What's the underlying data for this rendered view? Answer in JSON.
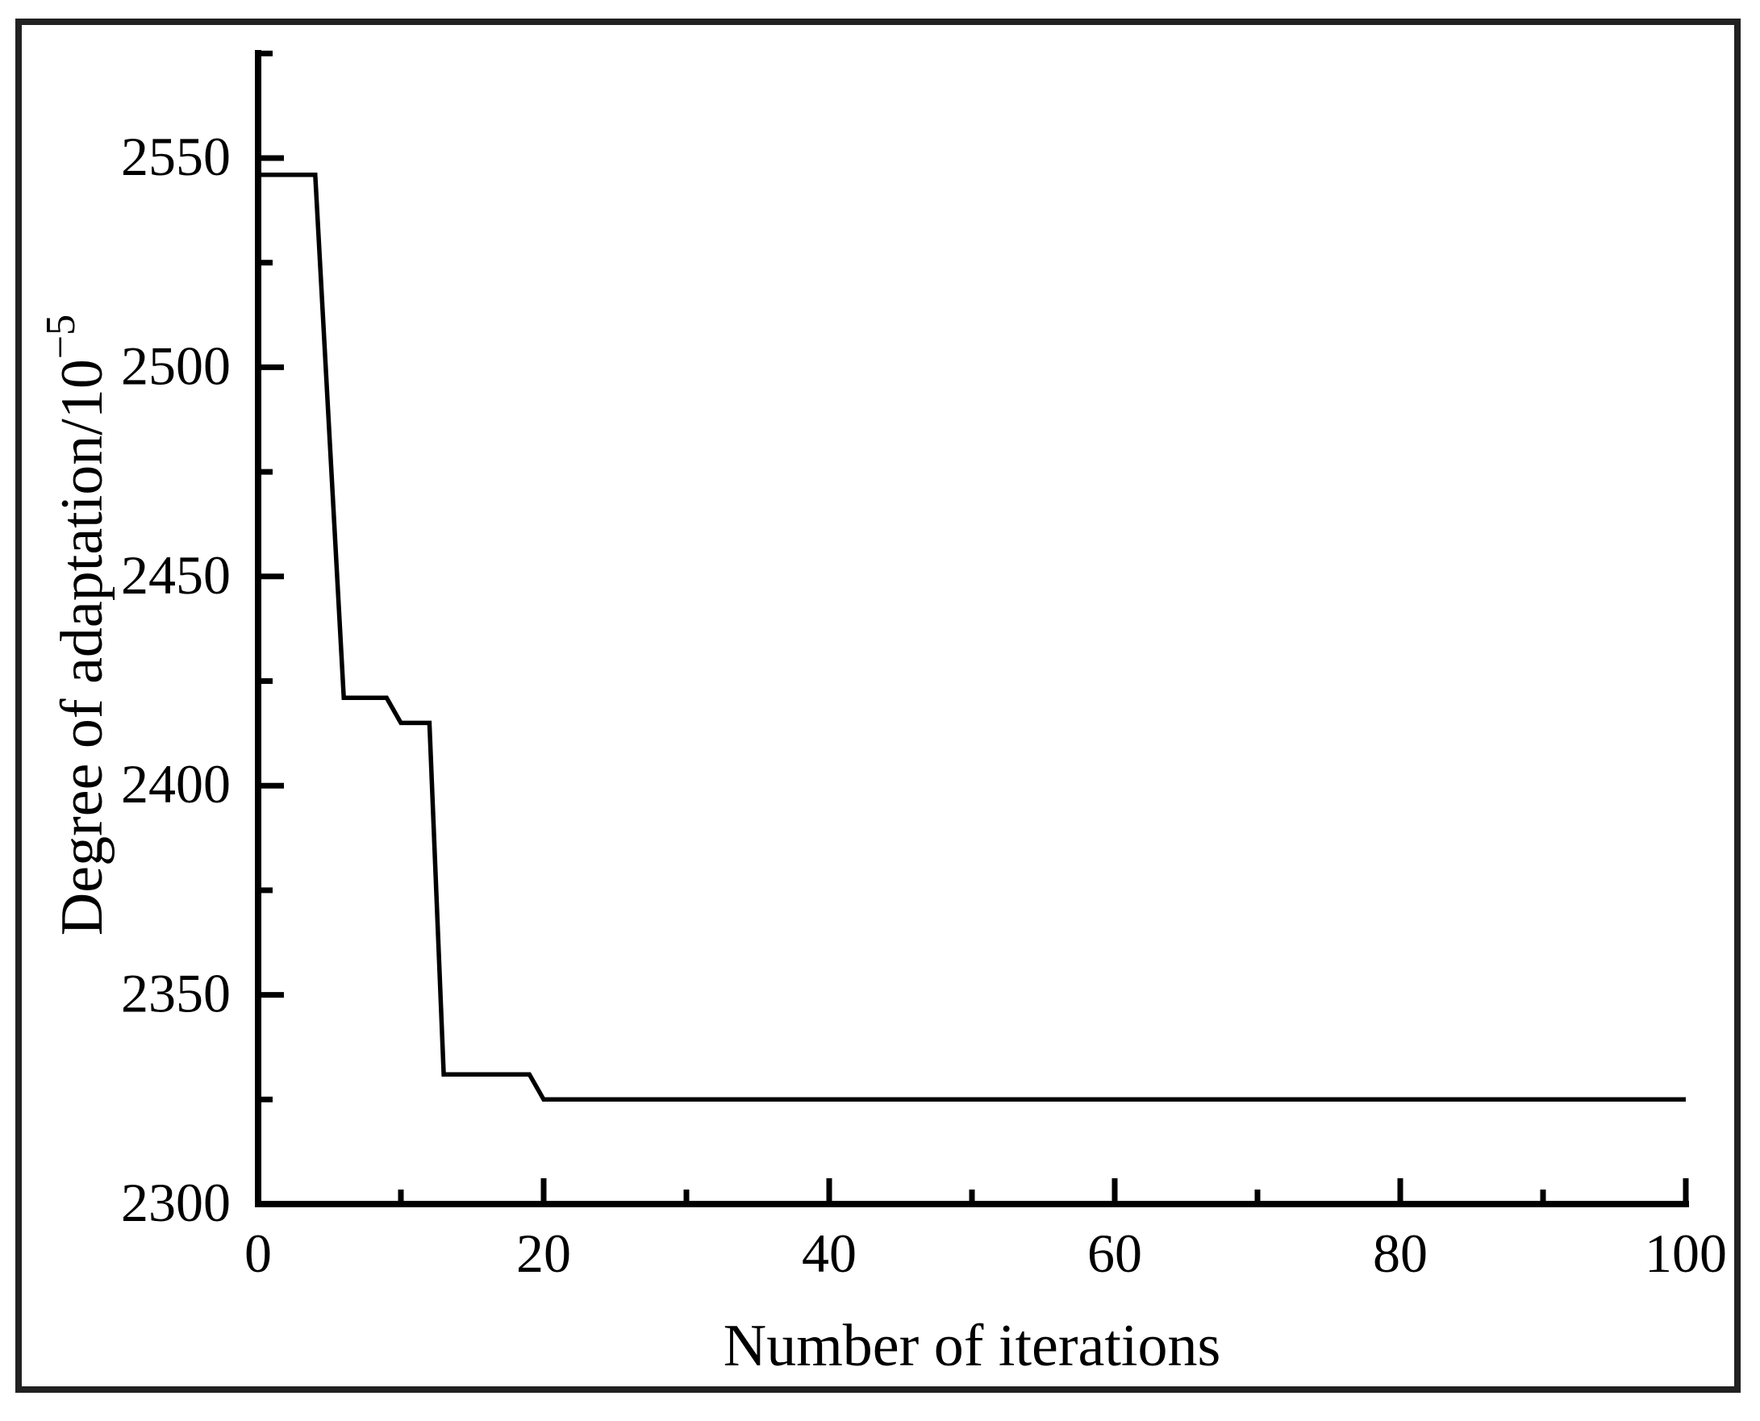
{
  "figure": {
    "background_color": "#ffffff",
    "frame_color": "#212121",
    "axis_color": "#000000",
    "text_color": "#000000"
  },
  "chart_data": {
    "type": "line",
    "title": "",
    "xlabel": "Number of iterations",
    "ylabel": "Degree of adaptation/10⁻⁵",
    "ylabel_main": "Degree of adaptation/10",
    "ylabel_superscript": "−5",
    "xlim": [
      0,
      100
    ],
    "ylim": [
      2300,
      2575
    ],
    "x_major_ticks": [
      0,
      20,
      40,
      60,
      80,
      100
    ],
    "x_minor_ticks": [
      10,
      30,
      50,
      70,
      90
    ],
    "y_major_ticks": [
      2300,
      2350,
      2400,
      2450,
      2500,
      2550
    ],
    "y_minor_ticks": [
      2325,
      2375,
      2425,
      2475,
      2525,
      2575
    ],
    "x_tick_labels": [
      "0",
      "20",
      "40",
      "60",
      "80",
      "100"
    ],
    "y_tick_labels": [
      "2300",
      "2350",
      "2400",
      "2450",
      "2500",
      "2550"
    ],
    "grid": false,
    "legend": null,
    "line_color": "#000000",
    "series": [
      {
        "name": "degree-of-adaptation",
        "points": [
          [
            0,
            2546
          ],
          [
            4,
            2546
          ],
          [
            6,
            2421
          ],
          [
            9,
            2421
          ],
          [
            10,
            2415
          ],
          [
            12,
            2415
          ],
          [
            13,
            2331
          ],
          [
            19,
            2331
          ],
          [
            20,
            2325
          ],
          [
            100,
            2325
          ]
        ]
      }
    ]
  }
}
